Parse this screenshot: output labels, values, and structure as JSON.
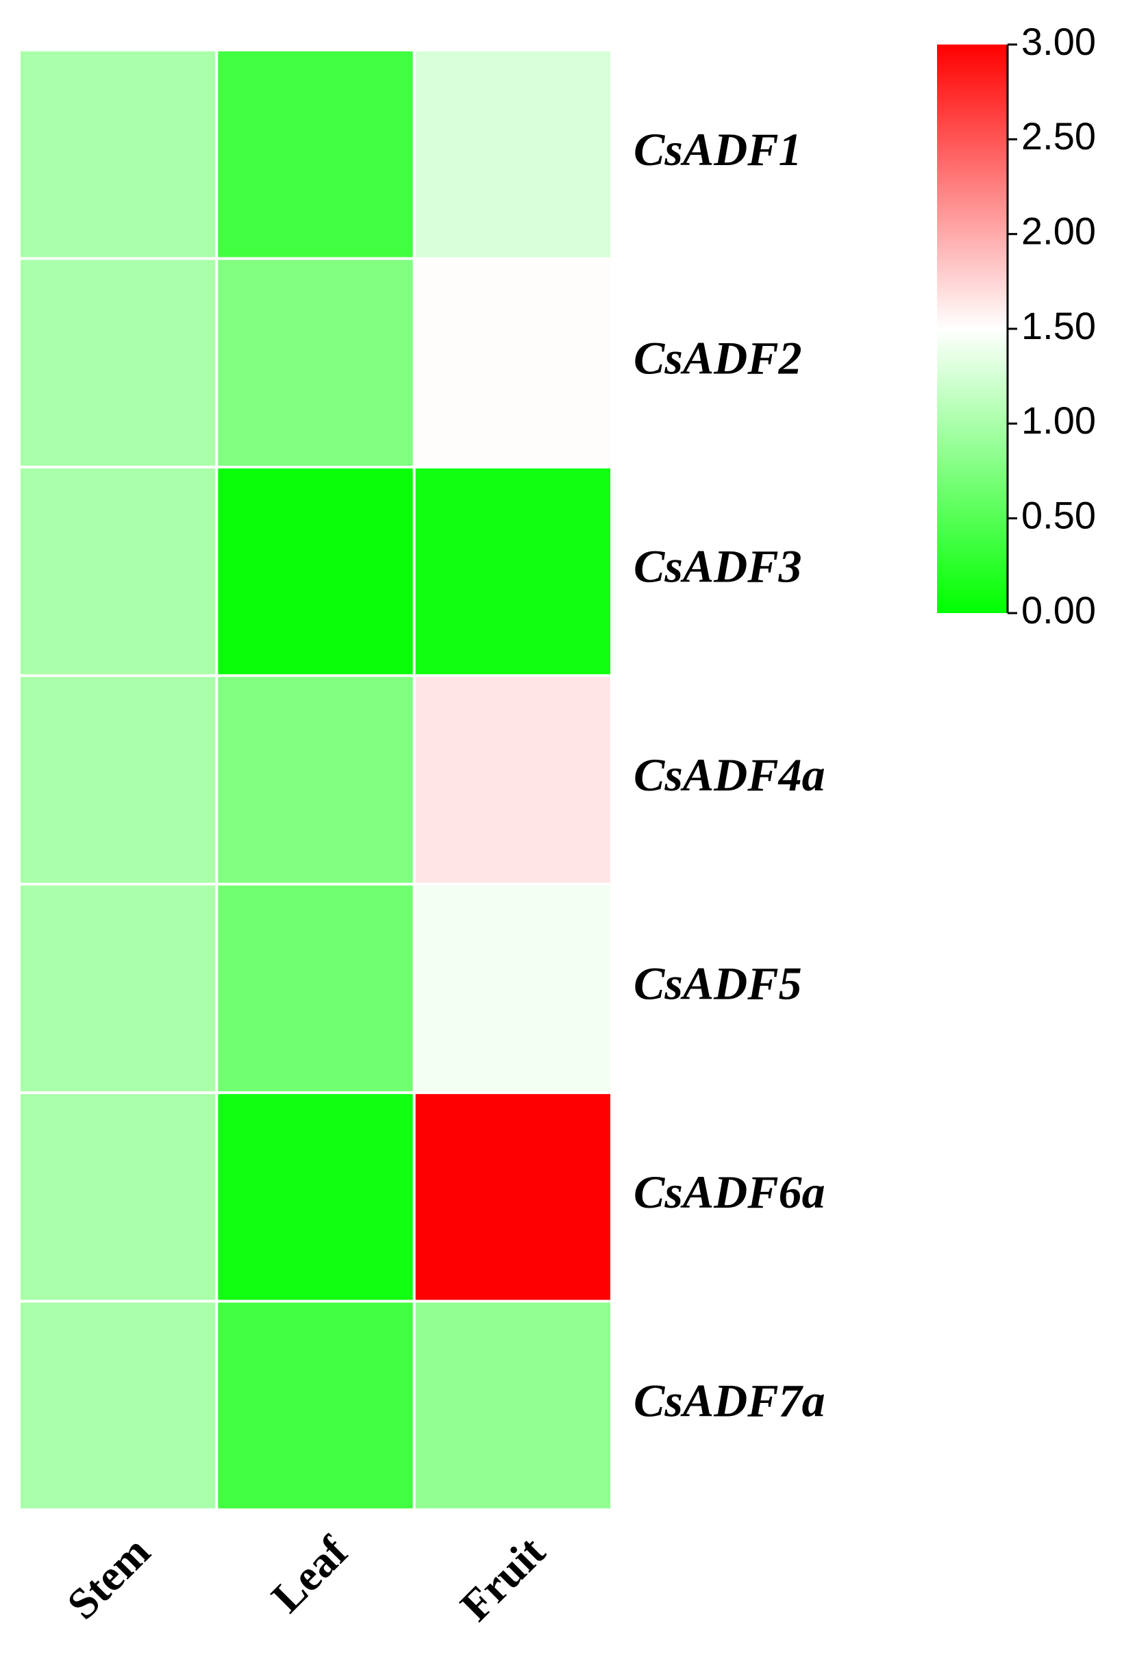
{
  "chart_data": {
    "type": "heatmap",
    "x_categories": [
      "Stem",
      "Leaf",
      "Fruit"
    ],
    "y_categories": [
      "CsADF1",
      "CsADF2",
      "CsADF3",
      "CsADF4a",
      "CsADF5",
      "CsADF6a",
      "CsADF7a"
    ],
    "values": [
      [
        1.0,
        0.38,
        1.27
      ],
      [
        1.0,
        0.75,
        1.52
      ],
      [
        1.0,
        0.05,
        0.1
      ],
      [
        1.0,
        0.75,
        1.65
      ],
      [
        1.0,
        0.66,
        1.43
      ],
      [
        1.0,
        0.1,
        3.0
      ],
      [
        1.0,
        0.38,
        0.85
      ]
    ],
    "colors": [
      "#00ff00",
      "#ffffff",
      "#ff0000"
    ],
    "clim": [
      0,
      3
    ],
    "cticks": [
      {
        "value": 0,
        "label": "0.00"
      },
      {
        "value": 0.5,
        "label": "0.50"
      },
      {
        "value": 1,
        "label": "1.00"
      },
      {
        "value": 1.5,
        "label": "1.50"
      },
      {
        "value": 2,
        "label": "2.00"
      },
      {
        "value": 2.5,
        "label": "2.50"
      },
      {
        "value": 3,
        "label": "3.00"
      }
    ]
  }
}
